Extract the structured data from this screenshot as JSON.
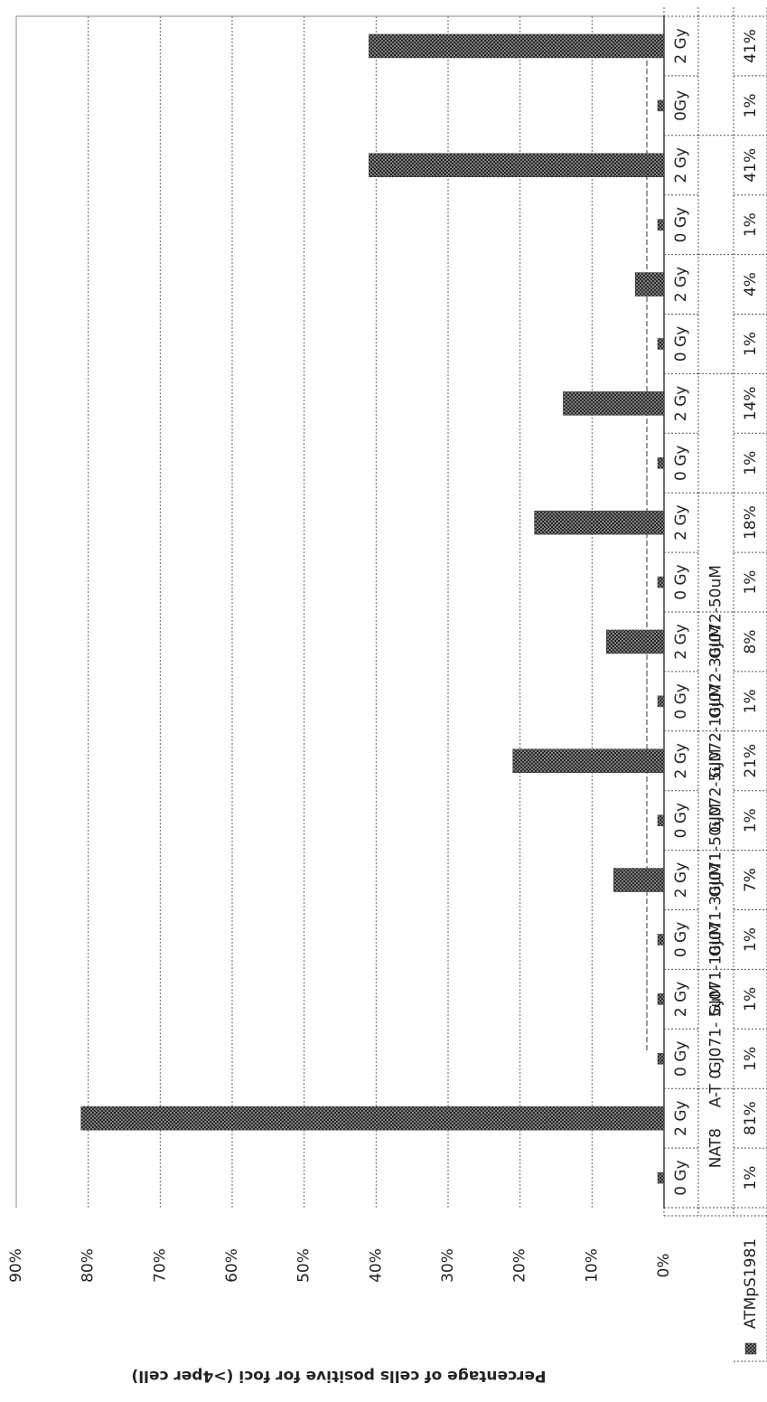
{
  "chart_data": {
    "type": "bar",
    "ylabel": "Percentage of cells positive for foci (>4per cell)",
    "ylim": [
      0,
      90
    ],
    "yticks": [
      "0%",
      "10%",
      "20%",
      "30%",
      "40%",
      "50%",
      "60%",
      "70%",
      "80%",
      "90%"
    ],
    "grid": true,
    "legend_position": "bottom-left",
    "groups": [
      "NAT8",
      "A-T 0",
      "GJ071- 5uM",
      "GJ071-10uM",
      "GJ071-30uM",
      "GJ071-50uM",
      "GJ072-5uM",
      "GJ072-10uM",
      "GJ072-30uM",
      "GJ072-50uM"
    ],
    "categories": [
      {
        "dose": "0 Gy",
        "group": 0
      },
      {
        "dose": "2 Gy",
        "group": 0
      },
      {
        "dose": "0 Gy",
        "group": 1
      },
      {
        "dose": "2 Gy",
        "group": 1
      },
      {
        "dose": "0 Gy",
        "group": 2
      },
      {
        "dose": "2 Gy",
        "group": 2
      },
      {
        "dose": "0 Gy",
        "group": 3
      },
      {
        "dose": "2 Gy",
        "group": 3
      },
      {
        "dose": "0 Gy",
        "group": 4
      },
      {
        "dose": "2 Gy",
        "group": 4
      },
      {
        "dose": "0 Gy",
        "group": 5
      },
      {
        "dose": "2 Gy",
        "group": 5
      },
      {
        "dose": "0 Gy",
        "group": 6
      },
      {
        "dose": "2 Gy",
        "group": 6
      },
      {
        "dose": "0 Gy",
        "group": 7
      },
      {
        "dose": "2 Gy",
        "group": 7
      },
      {
        "dose": "0 Gy",
        "group": 8
      },
      {
        "dose": "2 Gy",
        "group": 8
      },
      {
        "dose": "0Gy",
        "group": 9
      },
      {
        "dose": "2 Gy",
        "group": 9
      }
    ],
    "series": [
      {
        "name": "ATMpS1981",
        "values": [
          1,
          81,
          1,
          1,
          1,
          7,
          1,
          21,
          1,
          8,
          1,
          18,
          1,
          14,
          1,
          4,
          1,
          41,
          1,
          41
        ],
        "labels": [
          "1%",
          "81%",
          "1%",
          "1%",
          "1%",
          "7%",
          "1%",
          "21%",
          "1%",
          "8%",
          "1%",
          "18%",
          "1%",
          "14%",
          "1%",
          "4%",
          "1%",
          "41%",
          "1%",
          "41%"
        ]
      }
    ],
    "bar_color": "#5a5a5a"
  }
}
